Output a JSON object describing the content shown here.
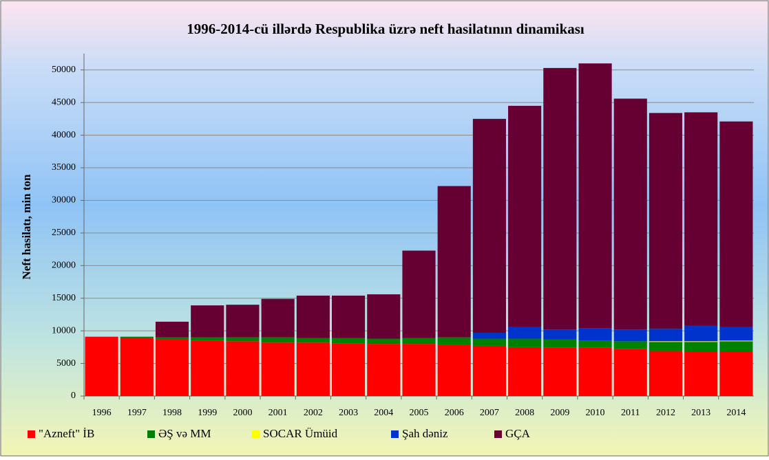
{
  "chart_data": {
    "type": "bar",
    "stacked": true,
    "title": "1996-2014-cü illərdə Respublika üzrə neft hasilatının dinamikası",
    "ylabel": "Neft hasilatı, min ton",
    "categories": [
      "1996",
      "1997",
      "1998",
      "1999",
      "2000",
      "2001",
      "2002",
      "2003",
      "2004",
      "2005",
      "2006",
      "2007",
      "2008",
      "2009",
      "2010",
      "2011",
      "2012",
      "2013",
      "2014"
    ],
    "series": [
      {
        "name": "\"Azneft\" İB",
        "color": "#ff0000",
        "values": [
          9100,
          8900,
          8700,
          8500,
          8400,
          8200,
          8200,
          8100,
          8000,
          8000,
          7900,
          7700,
          7500,
          7400,
          7400,
          7200,
          6900,
          6800,
          6800
        ]
      },
      {
        "name": "ƏŞ və MM",
        "color": "#008000",
        "values": [
          0,
          200,
          300,
          500,
          600,
          800,
          700,
          800,
          800,
          900,
          1100,
          1100,
          1300,
          1300,
          1100,
          1200,
          1400,
          1500,
          1600
        ]
      },
      {
        "name": "SOCAR Ümüid",
        "color": "#ffff00",
        "values": [
          0,
          0,
          0,
          0,
          0,
          0,
          0,
          0,
          0,
          0,
          0,
          0,
          0,
          0,
          0,
          0,
          100,
          100,
          100
        ]
      },
      {
        "name": "Şah dəniz",
        "color": "#0033cc",
        "values": [
          0,
          0,
          0,
          0,
          0,
          0,
          0,
          0,
          0,
          0,
          0,
          900,
          1800,
          1500,
          1900,
          1800,
          1900,
          2400,
          2100
        ]
      },
      {
        "name": "GÇA",
        "color": "#660033",
        "values": [
          0,
          0,
          2400,
          4900,
          5000,
          5900,
          6500,
          6500,
          6800,
          13400,
          23200,
          32800,
          33900,
          40100,
          40600,
          35400,
          33100,
          32700,
          31500
        ]
      }
    ],
    "ylim": [
      0,
      52500
    ],
    "yticks": [
      0,
      5000,
      10000,
      15000,
      20000,
      25000,
      30000,
      35000,
      40000,
      45000,
      50000
    ],
    "grid": true,
    "legend": "bottom"
  }
}
